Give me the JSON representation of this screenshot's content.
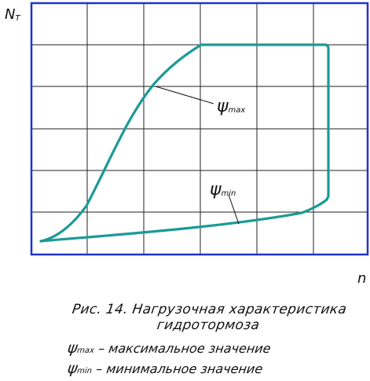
{
  "axes": {
    "y_label_main": "N",
    "y_label_sub": "T",
    "x_label": "n"
  },
  "curves": {
    "max_symbol": "ψ",
    "max_sub": "max",
    "min_symbol": "ψ",
    "min_sub": "min",
    "color": "#1a9a96"
  },
  "frame_color": "#2233cc",
  "grid_color": "#222222",
  "caption": {
    "line1": "Рис. 14.  Нагрузочная характеристика",
    "line2": "гидротормоза"
  },
  "legend": [
    {
      "symbol": "ψ",
      "sub": "max",
      "text": " – максимальное значение"
    },
    {
      "symbol": "ψ",
      "sub": "min",
      "text": " – минимальное значение"
    }
  ]
}
